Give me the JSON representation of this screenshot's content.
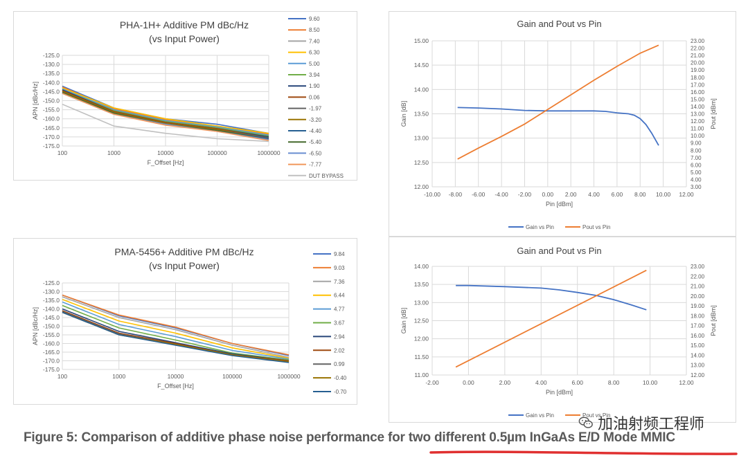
{
  "caption": {
    "text": "Figure 5: Comparison of additive phase noise performance for two different 0.5µm InGaAs E/D Mode MMIC"
  },
  "watermark": {
    "text": "加油射频工程师",
    "icon": "wechat-icon"
  },
  "colors": {
    "underline": "#e03030",
    "gain": "#4472c4",
    "pout": "#ed7d31",
    "grid": "#d9d9d9",
    "axis_text": "#595959",
    "title_text": "#404040"
  },
  "chart_data": [
    {
      "id": "pha",
      "type": "line",
      "title": "PHA-1H+ Additive PM dBc/Hz",
      "subtitle": "(vs Input Power)",
      "xlabel": "F_Offset [Hz]",
      "ylabel": "APN [dBc/Hz]",
      "xscale": "log",
      "x": [
        100,
        1000,
        10000,
        100000,
        1000000
      ],
      "x_ticks": [
        "100",
        "1000",
        "10000",
        "100000",
        "1000000"
      ],
      "ylim": [
        -175,
        -125
      ],
      "y_ticks": [
        "-125.0",
        "-130.0",
        "-135.0",
        "-140.0",
        "-145.0",
        "-150.0",
        "-155.0",
        "-160.0",
        "-165.0",
        "-170.0",
        "-175.0"
      ],
      "y_tick_values": [
        -125,
        -130,
        -135,
        -140,
        -145,
        -150,
        -155,
        -160,
        -165,
        -170,
        -175
      ],
      "legend_position": "right",
      "series": [
        {
          "name": "9.60",
          "color": "#4472c4",
          "values": [
            -142,
            -154,
            -160,
            -163,
            -168
          ]
        },
        {
          "name": "8.50",
          "color": "#ed7d31",
          "values": [
            -142.5,
            -154.5,
            -160.5,
            -164,
            -168.5
          ]
        },
        {
          "name": "7.40",
          "color": "#a5a5a5",
          "values": [
            -143,
            -155,
            -161,
            -164.5,
            -169
          ]
        },
        {
          "name": "6.30",
          "color": "#ffc000",
          "values": [
            -143,
            -154,
            -160,
            -164,
            -168
          ]
        },
        {
          "name": "5.00",
          "color": "#5b9bd5",
          "values": [
            -143.5,
            -155,
            -161,
            -164.5,
            -169
          ]
        },
        {
          "name": "3.94",
          "color": "#70ad47",
          "values": [
            -144,
            -155.5,
            -161.5,
            -165,
            -169.5
          ]
        },
        {
          "name": "1.90",
          "color": "#264478",
          "values": [
            -144,
            -156,
            -162,
            -165.5,
            -170
          ]
        },
        {
          "name": "0.06",
          "color": "#9e480e",
          "values": [
            -144.5,
            -156,
            -162,
            -165.5,
            -170.5
          ]
        },
        {
          "name": "-1.97",
          "color": "#636363",
          "values": [
            -145,
            -156.5,
            -162.5,
            -166,
            -170.5
          ]
        },
        {
          "name": "-3.20",
          "color": "#997300",
          "values": [
            -145,
            -156.5,
            -162.5,
            -166,
            -171
          ]
        },
        {
          "name": "-4.40",
          "color": "#255e91",
          "values": [
            -145.5,
            -157,
            -163,
            -166.5,
            -171
          ]
        },
        {
          "name": "-5.40",
          "color": "#43682b",
          "values": [
            -145.5,
            -157,
            -163,
            -166.5,
            -171.5
          ]
        },
        {
          "name": "-6.50",
          "color": "#698ed0",
          "values": [
            -146,
            -157.5,
            -163,
            -167,
            -171.5
          ]
        },
        {
          "name": "-7.77",
          "color": "#f1975a",
          "values": [
            -146,
            -157.5,
            -163.5,
            -167,
            -172
          ]
        },
        {
          "name": "DUT BYPASS",
          "color": "#c0c0c0",
          "values": [
            -152,
            -164,
            -168,
            -171,
            -172.5
          ]
        }
      ]
    },
    {
      "id": "pma",
      "type": "line",
      "title": "PMA-5456+ Additive PM dBc/Hz",
      "subtitle": "(vs Input Power)",
      "xlabel": "F_Offset [Hz]",
      "ylabel": "APN [dBc/Hz]",
      "xscale": "log",
      "x": [
        100,
        1000,
        10000,
        100000,
        1000000
      ],
      "x_ticks": [
        "100",
        "1000",
        "10000",
        "100000",
        "1000000"
      ],
      "ylim": [
        -175,
        -125
      ],
      "y_ticks": [
        "-125.0",
        "-130.0",
        "-135.0",
        "-140.0",
        "-145.0",
        "-150.0",
        "-155.0",
        "-160.0",
        "-165.0",
        "-170.0",
        "-175.0"
      ],
      "y_tick_values": [
        -125,
        -130,
        -135,
        -140,
        -145,
        -150,
        -155,
        -160,
        -165,
        -170,
        -175
      ],
      "legend_position": "right",
      "series": [
        {
          "name": "9.84",
          "color": "#4472c4",
          "values": [
            -132,
            -144,
            -151,
            -160,
            -167
          ]
        },
        {
          "name": "9.03",
          "color": "#ed7d31",
          "values": [
            -132,
            -143.5,
            -150.5,
            -160,
            -166.5
          ]
        },
        {
          "name": "7.36",
          "color": "#a5a5a5",
          "values": [
            -133,
            -145,
            -152,
            -161,
            -168
          ]
        },
        {
          "name": "6.44",
          "color": "#ffc000",
          "values": [
            -134.5,
            -147,
            -154,
            -162.5,
            -168.5
          ]
        },
        {
          "name": "4.77",
          "color": "#5b9bd5",
          "values": [
            -136,
            -149,
            -156,
            -164,
            -169
          ]
        },
        {
          "name": "3.67",
          "color": "#70ad47",
          "values": [
            -138,
            -151,
            -158,
            -165.5,
            -169.5
          ]
        },
        {
          "name": "2.94",
          "color": "#264478",
          "values": [
            -140,
            -153,
            -159.5,
            -166,
            -170
          ]
        },
        {
          "name": "2.02",
          "color": "#9e480e",
          "values": [
            -141,
            -154,
            -160,
            -166.5,
            -170
          ]
        },
        {
          "name": "0.99",
          "color": "#636363",
          "values": [
            -141.5,
            -154.5,
            -160.5,
            -166.5,
            -170.5
          ]
        },
        {
          "name": "-0.40",
          "color": "#997300",
          "values": [
            -142,
            -155,
            -160.5,
            -166.5,
            -170.5
          ]
        },
        {
          "name": "-0.70",
          "color": "#255e91",
          "values": [
            -142,
            -155,
            -161,
            -167,
            -171
          ]
        }
      ]
    },
    {
      "id": "gp1",
      "type": "line",
      "title": "Gain and Pout vs Pin",
      "xlabel": "Pin [dBm]",
      "ylabel": "Gain [dB]",
      "y2label": "Pout [dBm]",
      "xlim": [
        -10,
        12
      ],
      "x_ticks": [
        "-10.00",
        "-8.00",
        "-6.00",
        "-4.00",
        "-2.00",
        "0.00",
        "2.00",
        "4.00",
        "6.00",
        "8.00",
        "10.00",
        "12.00"
      ],
      "x_tick_values": [
        -10,
        -8,
        -6,
        -4,
        -2,
        0,
        2,
        4,
        6,
        8,
        10,
        12
      ],
      "ylim": [
        12,
        15
      ],
      "y_ticks": [
        "12.00",
        "12.50",
        "13.00",
        "13.50",
        "14.00",
        "14.50",
        "15.00"
      ],
      "y_tick_values": [
        12,
        12.5,
        13,
        13.5,
        14,
        14.5,
        15
      ],
      "y2lim": [
        3,
        23
      ],
      "y2_ticks": [
        "3.00",
        "4.00",
        "5.00",
        "6.00",
        "7.00",
        "8.00",
        "9.00",
        "10.00",
        "11.00",
        "12.00",
        "13.00",
        "14.00",
        "15.00",
        "16.00",
        "17.00",
        "18.00",
        "19.00",
        "20.00",
        "21.00",
        "22.00",
        "23.00"
      ],
      "y2_tick_values": [
        3,
        4,
        5,
        6,
        7,
        8,
        9,
        10,
        11,
        12,
        13,
        14,
        15,
        16,
        17,
        18,
        19,
        20,
        21,
        22,
        23
      ],
      "legend_position": "bottom",
      "series": [
        {
          "name": "Gain vs Pin",
          "axis": "left",
          "color": "#4472c4",
          "x": [
            -7.8,
            -6,
            -4,
            -2,
            0,
            2,
            4,
            5,
            6,
            7,
            7.5,
            8,
            8.5,
            9,
            9.6
          ],
          "values": [
            13.63,
            13.62,
            13.6,
            13.57,
            13.56,
            13.56,
            13.56,
            13.55,
            13.52,
            13.5,
            13.47,
            13.4,
            13.28,
            13.1,
            12.85
          ]
        },
        {
          "name": "Pout vs Pin",
          "axis": "right",
          "color": "#ed7d31",
          "x": [
            -7.8,
            -6,
            -4,
            -2,
            0,
            2,
            4,
            6,
            8,
            9.6
          ],
          "values": [
            6.8,
            8.3,
            9.9,
            11.6,
            13.6,
            15.6,
            17.6,
            19.5,
            21.3,
            22.4
          ]
        }
      ]
    },
    {
      "id": "gp2",
      "type": "line",
      "title": "Gain and Pout vs Pin",
      "xlabel": "Pin [dBm]",
      "ylabel": "Gain [dB]",
      "y2label": "Pout [dBm]",
      "xlim": [
        -2,
        12
      ],
      "x_ticks": [
        "-2.00",
        "0.00",
        "2.00",
        "4.00",
        "6.00",
        "8.00",
        "10.00",
        "12.00"
      ],
      "x_tick_values": [
        -2,
        0,
        2,
        4,
        6,
        8,
        10,
        12
      ],
      "ylim": [
        11,
        14
      ],
      "y_ticks": [
        "11.00",
        "11.50",
        "12.00",
        "12.50",
        "13.00",
        "13.50",
        "14.00"
      ],
      "y_tick_values": [
        11,
        11.5,
        12,
        12.5,
        13,
        13.5,
        14
      ],
      "y2lim": [
        12,
        23
      ],
      "y2_ticks": [
        "12.00",
        "13.00",
        "14.00",
        "15.00",
        "16.00",
        "17.00",
        "18.00",
        "19.00",
        "20.00",
        "21.00",
        "22.00",
        "23.00"
      ],
      "y2_tick_values": [
        12,
        13,
        14,
        15,
        16,
        17,
        18,
        19,
        20,
        21,
        22,
        23
      ],
      "legend_position": "bottom",
      "series": [
        {
          "name": "Gain vs Pin",
          "axis": "left",
          "color": "#4472c4",
          "x": [
            -0.7,
            0,
            2,
            4,
            5,
            6,
            7,
            8,
            9,
            9.8
          ],
          "values": [
            13.47,
            13.47,
            13.44,
            13.4,
            13.35,
            13.28,
            13.2,
            13.08,
            12.93,
            12.8
          ]
        },
        {
          "name": "Pout vs Pin",
          "axis": "right",
          "color": "#ed7d31",
          "x": [
            -0.7,
            9.8
          ],
          "values": [
            12.8,
            22.6
          ]
        }
      ]
    }
  ]
}
